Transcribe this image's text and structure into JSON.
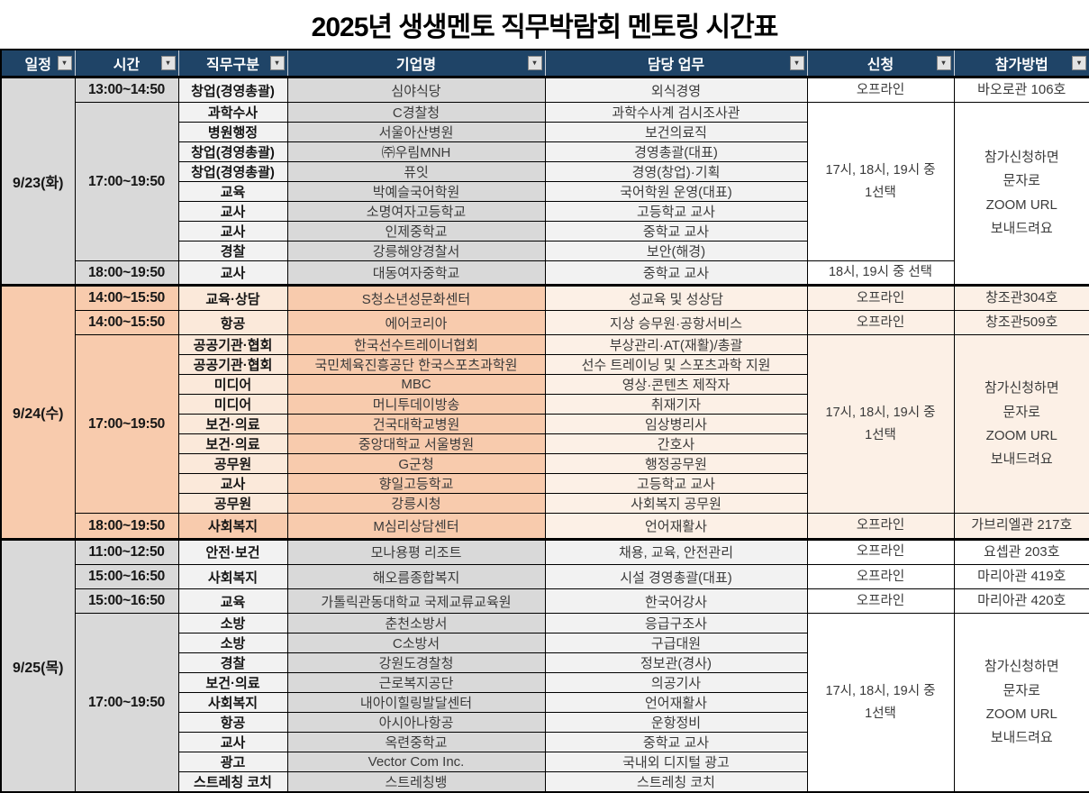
{
  "title": "2025년 생생멘토 직무박람회 멘토링 시간표",
  "colors": {
    "header_bg": "#1F4467",
    "header_text": "#FFFFFF",
    "gray_mid": "#D9D9D9",
    "gray_light": "#F2F2F2",
    "white": "#FFFFFF",
    "orange_mid": "#F8CBAD",
    "orange_cat": "#FBE9DA",
    "orange_light": "#FCF0E6"
  },
  "columns": [
    {
      "label": "일정"
    },
    {
      "label": "시간"
    },
    {
      "label": "직무구분"
    },
    {
      "label": "기업명"
    },
    {
      "label": "담당 업무"
    },
    {
      "label": "신청"
    },
    {
      "label": "참가방법"
    }
  ],
  "filter_icon": "▾",
  "table": {
    "groups": [
      {
        "date": "9/23(화)",
        "theme": "gray",
        "rows": [
          {
            "time": {
              "label": "13:00~14:50",
              "span": 1
            },
            "category": "창업(경영총괄)",
            "company": "심야식당",
            "duty": "외식경영",
            "apply": {
              "label": "오프라인",
              "span": 1
            },
            "method": {
              "label": "바오로관 106호",
              "span": 1
            }
          },
          {
            "time": {
              "label": "17:00~19:50",
              "span": 8
            },
            "category": "과학수사",
            "company": "C경찰청",
            "duty": "과학수사계 검시조사관",
            "apply": {
              "label": "17시, 18시, 19시 중\n1선택",
              "span": 8
            },
            "method": {
              "label": "참가신청하면\n문자로\nZOOM URL\n보내드려요",
              "span": 9
            }
          },
          {
            "category": "병원행정",
            "company": "서울아산병원",
            "duty": "보건의료직"
          },
          {
            "category": "창업(경영총괄)",
            "company": "㈜우림MNH",
            "duty": "경영총괄(대표)"
          },
          {
            "category": "창업(경영총괄)",
            "company": "퓨잇",
            "duty": "경영(창업)·기획"
          },
          {
            "category": "교육",
            "company": "박예슬국어학원",
            "duty": "국어학원 운영(대표)"
          },
          {
            "category": "교사",
            "company": "소명여자고등학교",
            "duty": "고등학교 교사"
          },
          {
            "category": "교사",
            "company": "인제중학교",
            "duty": "중학교 교사"
          },
          {
            "category": "경찰",
            "company": "강릉해양경찰서",
            "duty": "보안(해경)"
          },
          {
            "time": {
              "label": "18:00~19:50",
              "span": 1
            },
            "category": "교사",
            "company": "대동여자중학교",
            "duty": "중학교 교사",
            "apply": {
              "label": "18시, 19시 중 선택",
              "span": 1
            }
          }
        ]
      },
      {
        "date": "9/24(수)",
        "theme": "orange",
        "rows": [
          {
            "time": {
              "label": "14:00~15:50",
              "span": 1
            },
            "category": "교육·상담",
            "company": "S청소년성문화센터",
            "duty": "성교육 및 성상담",
            "apply": {
              "label": "오프라인",
              "span": 1
            },
            "method": {
              "label": "창조관304호",
              "span": 1
            }
          },
          {
            "time": {
              "label": "14:00~15:50",
              "span": 1
            },
            "category": "항공",
            "company": "에어코리아",
            "duty": "지상 승무원·공항서비스",
            "apply": {
              "label": "오프라인",
              "span": 1
            },
            "method": {
              "label": "창조관509호",
              "span": 1
            }
          },
          {
            "time": {
              "label": "17:00~19:50",
              "span": 9
            },
            "category": "공공기관·협회",
            "company": "한국선수트레이너협회",
            "duty": "부상관리·AT(재활)/총괄",
            "apply": {
              "label": "17시, 18시, 19시 중\n1선택",
              "span": 9
            },
            "method": {
              "label": "참가신청하면\n문자로\nZOOM URL\n보내드려요",
              "span": 9
            }
          },
          {
            "category": "공공기관·협회",
            "company": "국민체육진흥공단 한국스포츠과학원",
            "duty": "선수 트레이닝 및 스포츠과학 지원"
          },
          {
            "category": "미디어",
            "company": "MBC",
            "duty": "영상·콘텐츠 제작자"
          },
          {
            "category": "미디어",
            "company": "머니투데이방송",
            "duty": "취재기자"
          },
          {
            "category": "보건·의료",
            "company": "건국대학교병원",
            "duty": "임상병리사"
          },
          {
            "category": "보건·의료",
            "company": "중앙대학교 서울병원",
            "duty": "간호사"
          },
          {
            "category": "공무원",
            "company": "G군청",
            "duty": "행정공무원"
          },
          {
            "category": "교사",
            "company": "향일고등학교",
            "duty": "고등학교 교사"
          },
          {
            "category": "공무원",
            "company": "강릉시청",
            "duty": "사회복지 공무원"
          },
          {
            "time": {
              "label": "18:00~19:50",
              "span": 1
            },
            "category": "사회복지",
            "cat_mid": true,
            "company": "M심리상담센터",
            "duty": "언어재활사",
            "apply": {
              "label": "오프라인",
              "span": 1
            },
            "method": {
              "label": "가브리엘관 217호",
              "span": 1
            }
          }
        ]
      },
      {
        "date": "9/25(목)",
        "theme": "gray",
        "rows": [
          {
            "time": {
              "label": "11:00~12:50",
              "span": 1
            },
            "category": "안전·보건",
            "company": "모나용평 리조트",
            "duty": "채용, 교육, 안전관리",
            "apply": {
              "label": "오프라인",
              "span": 1
            },
            "method": {
              "label": "요셉관 203호",
              "span": 1
            }
          },
          {
            "time": {
              "label": "15:00~16:50",
              "span": 1
            },
            "category": "사회복지",
            "company": "해오름종합복지",
            "duty": "시설 경영총괄(대표)",
            "apply": {
              "label": "오프라인",
              "span": 1
            },
            "method": {
              "label": "마리아관 419호",
              "span": 1
            }
          },
          {
            "time": {
              "label": "15:00~16:50",
              "span": 1
            },
            "category": "교육",
            "company": "가톨릭관동대학교 국제교류교육원",
            "duty": "한국어강사",
            "apply": {
              "label": "오프라인",
              "span": 1
            },
            "method": {
              "label": "마리아관 420호",
              "span": 1
            }
          },
          {
            "time": {
              "label": "17:00~19:50",
              "span": 9
            },
            "category": "소방",
            "company": "춘천소방서",
            "duty": "응급구조사",
            "apply": {
              "label": "17시, 18시, 19시 중\n1선택",
              "span": 9
            },
            "method": {
              "label": "참가신청하면\n문자로\nZOOM URL\n보내드려요",
              "span": 9
            }
          },
          {
            "category": "소방",
            "company": "C소방서",
            "duty": "구급대원"
          },
          {
            "category": "경찰",
            "company": "강원도경찰청",
            "duty": "정보관(경사)"
          },
          {
            "category": "보건·의료",
            "company": "근로복지공단",
            "duty": "의공기사"
          },
          {
            "category": "사회복지",
            "company": "내아이힐링발달센터",
            "duty": "언어재활사"
          },
          {
            "category": "항공",
            "company": "아시아나항공",
            "duty": "운항정비"
          },
          {
            "category": "교사",
            "company": "옥련중학교",
            "duty": "중학교 교사"
          },
          {
            "category": "광고",
            "company": "Vector Com Inc.",
            "duty": "국내외 디지털 광고"
          },
          {
            "category": "스트레칭 코치",
            "company": "스트레칭뱅",
            "duty": "스트레칭 코치"
          }
        ]
      }
    ]
  }
}
